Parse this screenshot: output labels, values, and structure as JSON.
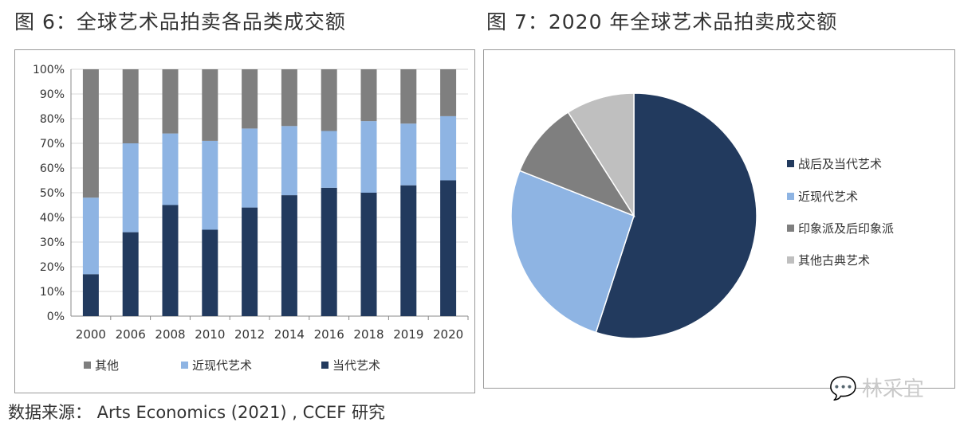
{
  "figure6": {
    "title": "图 6：全球艺术品拍卖各品类成交额"
  },
  "figure7": {
    "title": "图 7：2020 年全球艺术品拍卖成交额"
  },
  "source": "数据来源： Arts Economics (2021) , CCEF 研究",
  "watermark": "林采宜",
  "colors": {
    "contemporary": "#223a5e",
    "modern": "#8eb4e3",
    "impressionist": "#7f7f7f",
    "other": "#7f7f7f",
    "old_masters": "#bfbfbf",
    "grid": "#d9d9d9",
    "axis": "#888888"
  },
  "chart_data": [
    {
      "type": "bar",
      "stacked": true,
      "categories": [
        "2000",
        "2006",
        "2008",
        "2010",
        "2012",
        "2014",
        "2016",
        "2018",
        "2019",
        "2020"
      ],
      "series": [
        {
          "name": "当代艺术",
          "values": [
            17,
            34,
            45,
            35,
            44,
            49,
            52,
            50,
            53,
            55
          ]
        },
        {
          "name": "近现代艺术",
          "values": [
            31,
            36,
            29,
            36,
            32,
            28,
            23,
            29,
            25,
            26
          ]
        },
        {
          "name": "其他",
          "values": [
            52,
            30,
            26,
            29,
            24,
            23,
            25,
            21,
            22,
            19
          ]
        }
      ],
      "ylim": [
        0,
        100
      ],
      "yticks": [
        "0%",
        "10%",
        "20%",
        "30%",
        "40%",
        "50%",
        "60%",
        "70%",
        "80%",
        "90%",
        "100%"
      ],
      "grid": true,
      "legend_position": "bottom"
    },
    {
      "type": "pie",
      "labels": [
        "战后及当代艺术",
        "近现代艺术",
        "印象派及后印象派",
        "其他古典艺术"
      ],
      "values": [
        55,
        26,
        10,
        9
      ],
      "legend_position": "right"
    }
  ]
}
